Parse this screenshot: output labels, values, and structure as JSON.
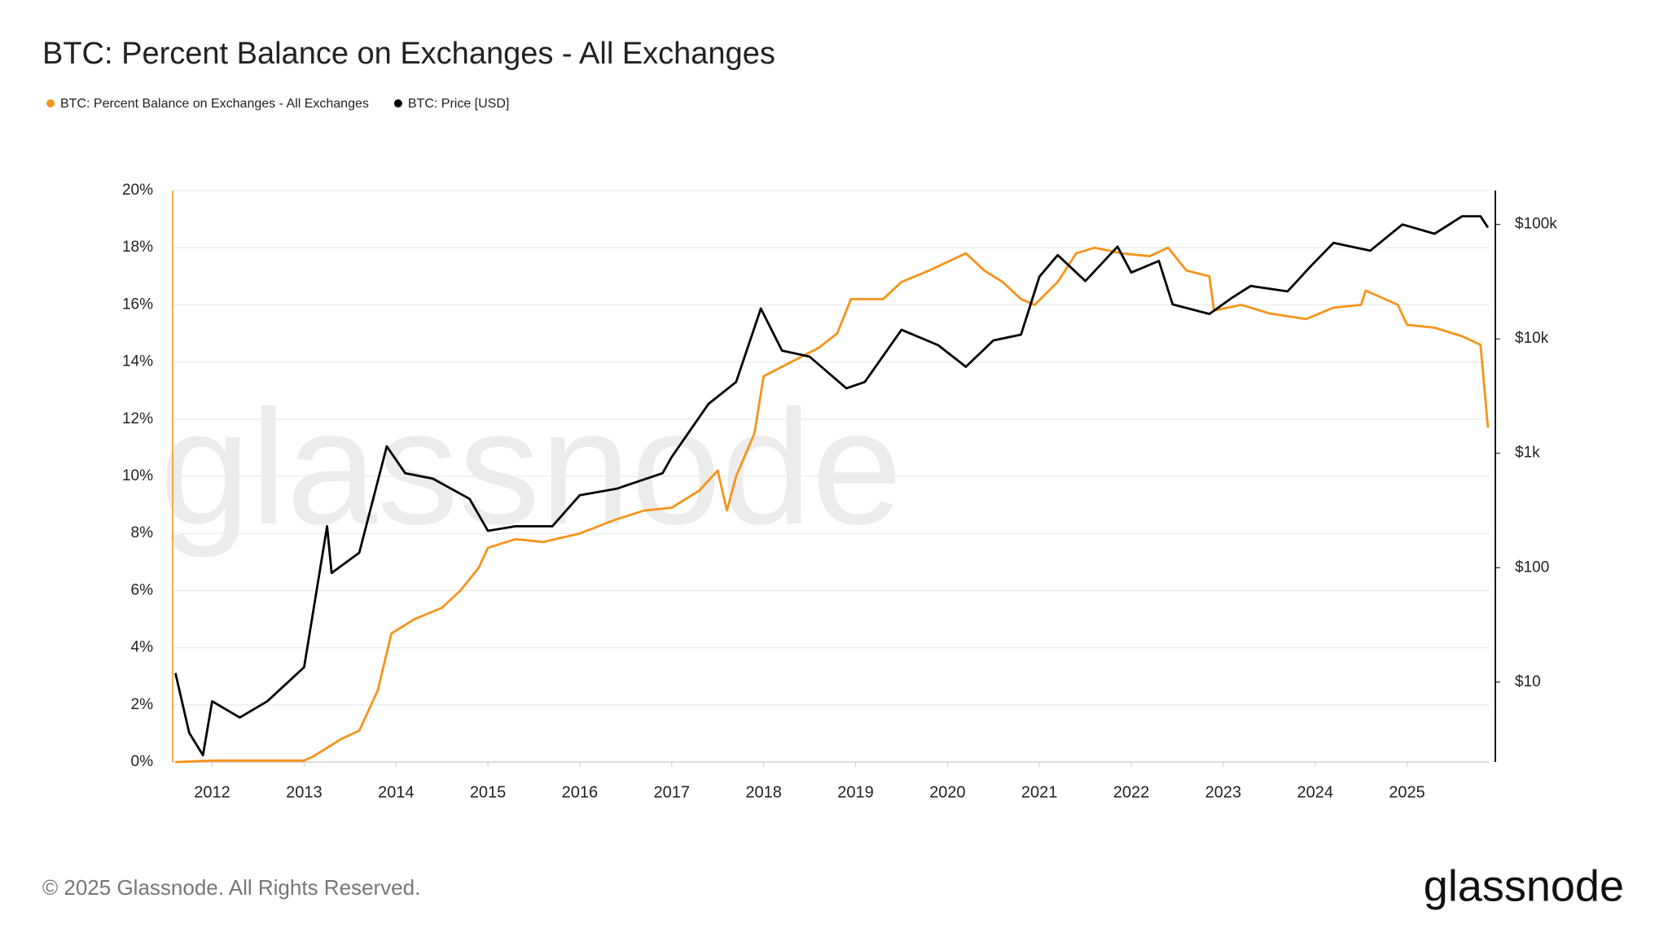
{
  "chart_data": {
    "type": "line",
    "title": "BTC: Percent Balance on Exchanges - All Exchanges",
    "watermark": "glassnode",
    "footer": "© 2025 Glassnode. All Rights Reserved.",
    "logo": "glassnode",
    "legend": "top-left",
    "grid": true,
    "xlim": [
      2011.57,
      2025.89
    ],
    "xticks": [
      2012,
      2013,
      2014,
      2015,
      2016,
      2017,
      2018,
      2019,
      2020,
      2021,
      2022,
      2023,
      2024,
      2025
    ],
    "ylim": [
      0,
      20
    ],
    "yticks": [
      {
        "value": 0,
        "label": "0%"
      },
      {
        "value": 2,
        "label": "2%"
      },
      {
        "value": 4,
        "label": "4%"
      },
      {
        "value": 6,
        "label": "6%"
      },
      {
        "value": 8,
        "label": "8%"
      },
      {
        "value": 10,
        "label": "10%"
      },
      {
        "value": 12,
        "label": "12%"
      },
      {
        "value": 14,
        "label": "14%"
      },
      {
        "value": 16,
        "label": "16%"
      },
      {
        "value": 18,
        "label": "18%"
      },
      {
        "value": 20,
        "label": "20%"
      }
    ],
    "y2lim": [
      2,
      198000
    ],
    "y2log": true,
    "y2ticks": [
      {
        "value": 10,
        "label": "$10"
      },
      {
        "value": 100,
        "label": "$100"
      },
      {
        "value": 1000,
        "label": "$1k"
      },
      {
        "value": 10000,
        "label": "$10k"
      },
      {
        "value": 100000,
        "label": "$100k"
      }
    ],
    "series": [
      {
        "name": "BTC: Percent Balance on Exchanges - All Exchanges",
        "color": "#f7931a",
        "x": [
          2011.6,
          2012,
          2013,
          2013.1,
          2013.4,
          2013.6,
          2013.8,
          2013.95,
          2014.2,
          2014.5,
          2014.7,
          2014.9,
          2015.0,
          2015.3,
          2015.6,
          2016.0,
          2016.4,
          2016.7,
          2017.0,
          2017.3,
          2017.5,
          2017.6,
          2017.7,
          2017.9,
          2018.0,
          2018.3,
          2018.6,
          2018.8,
          2018.95,
          2019.3,
          2019.5,
          2019.8,
          2020.2,
          2020.4,
          2020.6,
          2020.8,
          2020.95,
          2021.2,
          2021.4,
          2021.6,
          2021.9,
          2022.2,
          2022.4,
          2022.6,
          2022.85,
          2022.9,
          2023.2,
          2023.5,
          2023.9,
          2024.2,
          2024.5,
          2024.55,
          2024.9,
          2025.0,
          2025.3,
          2025.6,
          2025.8,
          2025.88
        ],
        "values": [
          0.0,
          0.05,
          0.05,
          0.2,
          0.8,
          1.1,
          2.5,
          4.5,
          5.0,
          5.4,
          6.0,
          6.8,
          7.5,
          7.8,
          7.7,
          8.0,
          8.5,
          8.8,
          8.9,
          9.5,
          10.2,
          8.8,
          10.0,
          11.5,
          13.5,
          14.0,
          14.5,
          15.0,
          16.2,
          16.2,
          16.8,
          17.2,
          17.8,
          17.2,
          16.8,
          16.2,
          16.0,
          16.8,
          17.8,
          18.0,
          17.8,
          17.7,
          18.0,
          17.2,
          17.0,
          15.8,
          16.0,
          15.7,
          15.5,
          15.9,
          16.0,
          16.5,
          16.0,
          15.3,
          15.2,
          14.9,
          14.6,
          11.7
        ]
      },
      {
        "name": "BTC: Price [USD]",
        "color": "#000000",
        "axis": "y2",
        "x": [
          2011.6,
          2011.75,
          2011.9,
          2012.0,
          2012.3,
          2012.6,
          2013.0,
          2013.25,
          2013.3,
          2013.6,
          2013.9,
          2014.1,
          2014.4,
          2014.8,
          2015.0,
          2015.3,
          2015.7,
          2016.0,
          2016.4,
          2016.9,
          2017.0,
          2017.4,
          2017.7,
          2017.97,
          2018.2,
          2018.5,
          2018.9,
          2019.1,
          2019.5,
          2019.9,
          2020.2,
          2020.5,
          2020.8,
          2021.0,
          2021.2,
          2021.5,
          2021.85,
          2022.0,
          2022.3,
          2022.45,
          2022.85,
          2023.1,
          2023.3,
          2023.7,
          2023.95,
          2024.2,
          2024.6,
          2024.95,
          2025.3,
          2025.6,
          2025.8,
          2025.88
        ],
        "values": [
          12,
          3.6,
          2.3,
          6.8,
          4.9,
          6.8,
          13.5,
          230,
          90,
          135,
          1150,
          670,
          600,
          400,
          210,
          230,
          230,
          430,
          490,
          670,
          930,
          2700,
          4200,
          18400,
          7900,
          7000,
          3700,
          4200,
          12000,
          8800,
          5700,
          9700,
          10900,
          35000,
          54000,
          32000,
          64000,
          38000,
          48000,
          20000,
          16500,
          23000,
          29000,
          26000,
          43000,
          69000,
          59000,
          100000,
          83000,
          118000,
          118000,
          94000
        ]
      }
    ]
  }
}
